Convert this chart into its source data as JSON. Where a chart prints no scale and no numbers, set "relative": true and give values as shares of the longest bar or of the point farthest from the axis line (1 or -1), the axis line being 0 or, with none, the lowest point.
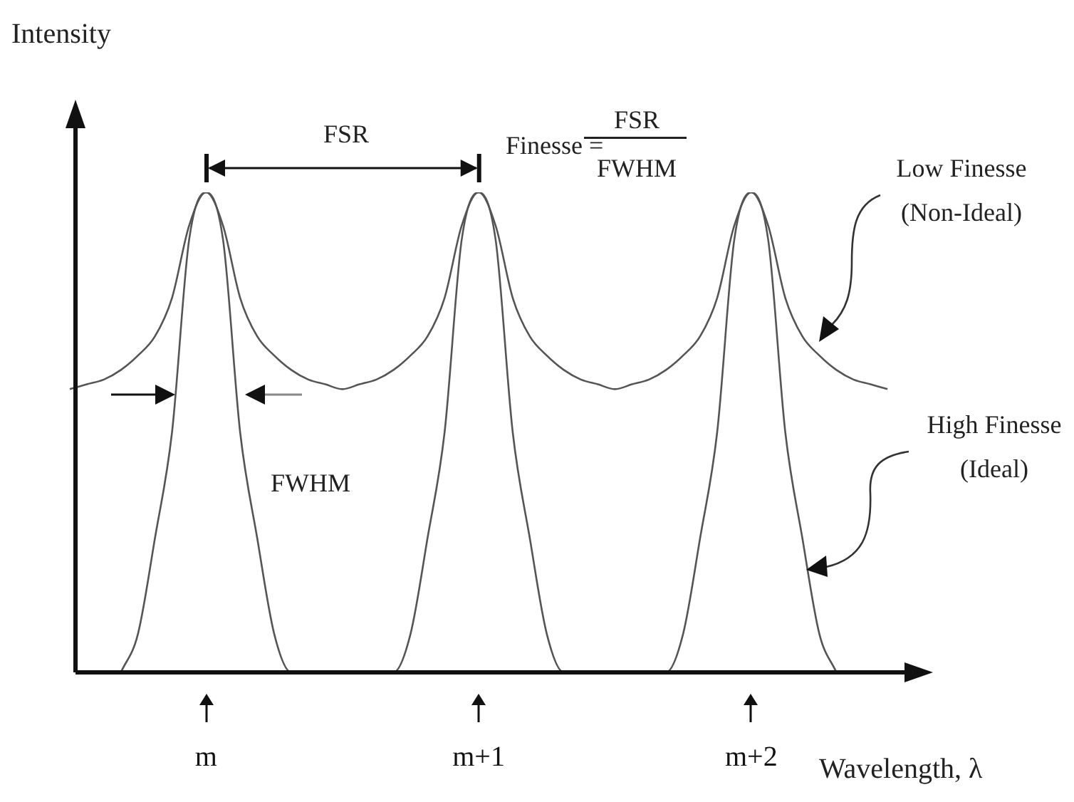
{
  "chart_data": {
    "type": "line",
    "relative": true,
    "legend": false,
    "marker": "none",
    "xlabel": "Wavelength, λ",
    "ylabel": "Intensity",
    "categories": [
      null,
      null,
      null,
      null,
      null,
      null,
      null,
      null,
      "m",
      null,
      null,
      null,
      null,
      null,
      null,
      null,
      null,
      null,
      null,
      null,
      null,
      null,
      null,
      null,
      "m+1",
      null,
      null,
      null,
      null,
      null,
      null,
      null,
      null,
      null,
      null,
      null,
      null,
      null,
      null,
      null,
      "m+2",
      null,
      null,
      null,
      null,
      null,
      null,
      null,
      null,
      null,
      null
    ],
    "series": [
      {
        "name": "Low Finesse (Non-Ideal)",
        "color": "#555555",
        "values": [
          0.59,
          0.6,
          0.61,
          0.63,
          0.66,
          0.7,
          0.78,
          0.93,
          1,
          0.93,
          0.78,
          0.7,
          0.66,
          0.63,
          0.61,
          0.6,
          0.59,
          0.6,
          0.61,
          0.63,
          0.66,
          0.7,
          0.78,
          0.93,
          1,
          0.93,
          0.78,
          0.7,
          0.66,
          0.63,
          0.61,
          0.6,
          0.59,
          0.6,
          0.61,
          0.63,
          0.66,
          0.7,
          0.78,
          0.93,
          1,
          0.93,
          0.78,
          0.7,
          0.66,
          0.63,
          0.61,
          0.6,
          0.59,
          null,
          null
        ]
      },
      {
        "name": "High Finesse (Ideal)",
        "color": "#555555",
        "values": [
          null,
          null,
          null,
          0,
          0.08,
          0.28,
          0.5,
          0.9,
          1,
          0.9,
          0.5,
          0.28,
          0.08,
          0,
          0,
          0,
          0,
          0,
          0,
          0,
          0.08,
          0.28,
          0.5,
          0.9,
          1,
          0.9,
          0.5,
          0.28,
          0.08,
          0,
          0,
          0,
          0,
          0,
          0,
          0,
          0.08,
          0.28,
          0.5,
          0.9,
          1,
          0.9,
          0.5,
          0.28,
          0.08,
          0,
          null,
          null,
          null,
          null,
          null
        ]
      }
    ],
    "annotations": [
      "FSR",
      "Finesse =",
      "FSR",
      "FWHM",
      "FWHM"
    ]
  }
}
